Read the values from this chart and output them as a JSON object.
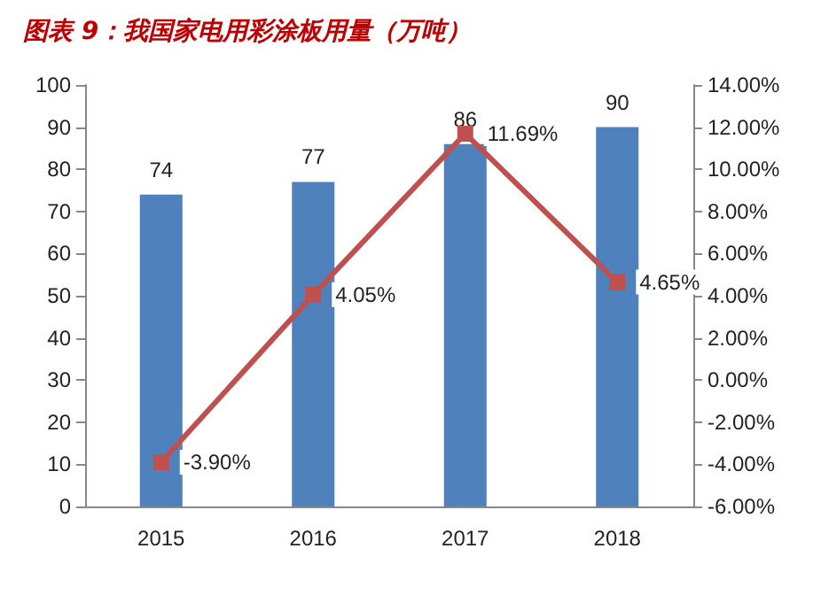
{
  "chart_data": {
    "type": "bar",
    "title": "图表 9：我国家电用彩涂板用量（万吨）",
    "categories": [
      "2015",
      "2016",
      "2017",
      "2018"
    ],
    "series": [
      {
        "color": "#4f81bd",
        "values": [
          74,
          77,
          86,
          90
        ],
        "value_labels": [
          "74",
          "77",
          "86",
          "90"
        ]
      },
      {
        "type": "line",
        "axis": "y2",
        "color": "#c0504d",
        "values": [
          -3.9,
          4.05,
          11.69,
          4.65
        ],
        "value_labels": [
          "-3.90%",
          "4.05%",
          "11.69%",
          "4.65%"
        ]
      }
    ],
    "ylim": [
      0,
      100
    ],
    "yticks": [
      0,
      10,
      20,
      30,
      40,
      50,
      60,
      70,
      80,
      90,
      100
    ],
    "y2lim": [
      -6,
      14
    ],
    "y2ticks": [
      {
        "value": -6,
        "label": "-6.00%"
      },
      {
        "value": -4,
        "label": "-4.00%"
      },
      {
        "value": -2,
        "label": "-2.00%"
      },
      {
        "value": 0,
        "label": "0.00%"
      },
      {
        "value": 2,
        "label": "2.00%"
      },
      {
        "value": 4,
        "label": "4.00%"
      },
      {
        "value": 6,
        "label": "6.00%"
      },
      {
        "value": 8,
        "label": "8.00%"
      },
      {
        "value": 10,
        "label": "10.00%"
      },
      {
        "value": 12,
        "label": "12.00%"
      },
      {
        "value": 14,
        "label": "14.00%"
      }
    ],
    "grid": false,
    "marker": "square",
    "line_style": "solid"
  }
}
